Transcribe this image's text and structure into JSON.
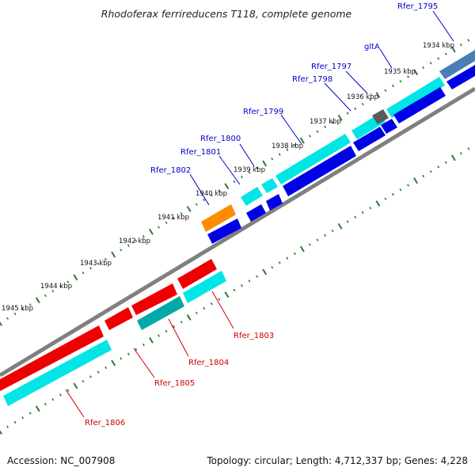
{
  "title": "Rhodoferax ferrireducens T118, complete genome",
  "footer": {
    "accession": "Accession: NC_007908",
    "summary": "Topology: circular; Length: 4,712,337 bp; Genes: 4,228"
  },
  "colors": {
    "forward_label": "#0000cc",
    "reverse_label": "#cc0000",
    "backbone": "#808080",
    "tick": "#2f7a2f",
    "cyan": "#00e5e5",
    "blue": "#0000e6",
    "red": "#ee0000",
    "orange": "#ff8c00",
    "dark_gray": "#5a5a5a",
    "steel": "#4a7fb5",
    "teal": "#00a9a9"
  },
  "kbp_labels": [
    "1934 kbp",
    "1935 kbp",
    "1936 kbp",
    "1937 kbp",
    "1938 kbp",
    "1939 kbp",
    "1940 kbp",
    "1941 kbp",
    "1942 kbp",
    "1943 kbp",
    "1944 kbp",
    "1945 kbp"
  ],
  "forward_genes": [
    "Rfer_1795",
    "gltA",
    "Rfer_1797",
    "Rfer_1798",
    "Rfer_1799",
    "Rfer_1800",
    "Rfer_1801",
    "Rfer_1802"
  ],
  "reverse_genes": [
    "Rfer_1803",
    "Rfer_1804",
    "Rfer_1805",
    "Rfer_1806"
  ]
}
